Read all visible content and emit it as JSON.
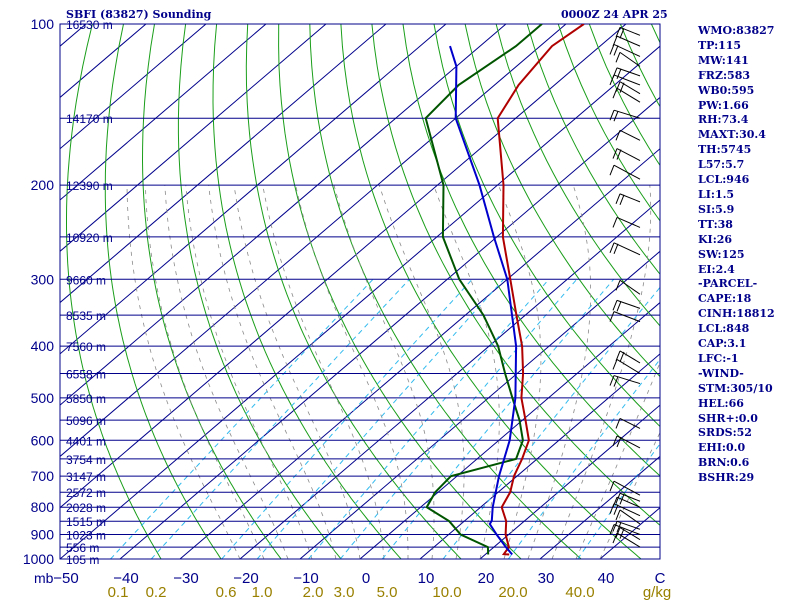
{
  "header": {
    "left": "SBFI (83827) Sounding",
    "right": "0000Z 24 APR 25"
  },
  "indices": [
    "WMO:83827",
    "TP:115",
    "MW:141",
    "FRZ:583",
    "WB0:595",
    "PW:1.66",
    "RH:73.4",
    "MAXT:30.4",
    "TH:5745",
    "L57:5.7",
    "LCL:946",
    "LI:1.5",
    "SI:5.9",
    "TT:38",
    "KI:26",
    "SW:125",
    "EI:2.4",
    "-PARCEL-",
    "CAPE:18",
    "CINH:18812",
    "LCL:848",
    "CAP:3.1",
    "LFC:-1",
    "-WIND-",
    "STM:305/10",
    "HEL:66",
    "SHR+:0.0",
    "SRDS:52",
    "EHI:0.0",
    "BRN:0.6",
    "BSHR:29"
  ],
  "colors": {
    "isobar": "#00008b",
    "isotherm": "#00008b",
    "dry_adiabat": "#1a9e1a",
    "moist_adiabat": "#8a8a8a",
    "mixing_ratio": "#33bbee",
    "temperature": "#b00000",
    "dewpoint": "#005500",
    "parcel": "#0000cc",
    "wind_barb": "#000000"
  },
  "chart_data": {
    "type": "skew-t",
    "title": "SBFI (83827) Sounding",
    "xlabel": "C",
    "ylabel": "mb",
    "mixing_ratio_unit": "g/kg",
    "pressure_range": [
      1000,
      100
    ],
    "temperature_range": [
      -50,
      50
    ],
    "pressure_ticks": [
      100,
      200,
      300,
      400,
      500,
      600,
      700,
      800,
      900,
      1000
    ],
    "temperature_ticks": [
      -50,
      -40,
      -30,
      -20,
      -10,
      0,
      10,
      20,
      30,
      40
    ],
    "mixing_ratio_ticks": [
      "0.1",
      "0.2",
      "0.6",
      "1.0",
      "2.0",
      "3.0",
      "5.0",
      "10.0",
      "20.0",
      "40.0"
    ],
    "height_labels": [
      {
        "p": 100,
        "label": "16530 m"
      },
      {
        "p": 150,
        "label": "14170 m"
      },
      {
        "p": 200,
        "label": "12390 m"
      },
      {
        "p": 250,
        "label": "10920 m"
      },
      {
        "p": 300,
        "label": "9660 m"
      },
      {
        "p": 350,
        "label": "8535 m"
      },
      {
        "p": 400,
        "label": "7560 m"
      },
      {
        "p": 450,
        "label": "6558 m"
      },
      {
        "p": 500,
        "label": "5850 m"
      },
      {
        "p": 550,
        "label": "5096 m"
      },
      {
        "p": 600,
        "label": "4401 m"
      },
      {
        "p": 650,
        "label": "3754 m"
      },
      {
        "p": 700,
        "label": "3147 m"
      },
      {
        "p": 750,
        "label": "2572 m"
      },
      {
        "p": 800,
        "label": "2028 m"
      },
      {
        "p": 850,
        "label": "1515 m"
      },
      {
        "p": 900,
        "label": "1023 m"
      },
      {
        "p": 950,
        "label": "556 m"
      },
      {
        "p": 1000,
        "label": "105 m"
      }
    ],
    "series": [
      {
        "name": "temperature",
        "points": [
          [
            981,
            24.0
          ],
          [
            979,
            23.0
          ],
          [
            950,
            22.5
          ],
          [
            900,
            19.5
          ],
          [
            850,
            17.0
          ],
          [
            800,
            13.5
          ],
          [
            750,
            12.0
          ],
          [
            700,
            9.5
          ],
          [
            650,
            7.5
          ],
          [
            600,
            5.0
          ],
          [
            550,
            0.5
          ],
          [
            500,
            -4.5
          ],
          [
            450,
            -9.0
          ],
          [
            400,
            -14.5
          ],
          [
            350,
            -21.5
          ],
          [
            300,
            -29.5
          ],
          [
            250,
            -39.0
          ],
          [
            200,
            -49.0
          ],
          [
            150,
            -63.0
          ],
          [
            130,
            -66.0
          ],
          [
            110,
            -68.0
          ],
          [
            100,
            -67.0
          ]
        ]
      },
      {
        "name": "dewpoint",
        "points": [
          [
            981,
            20.5
          ],
          [
            950,
            19.0
          ],
          [
            900,
            12.0
          ],
          [
            850,
            7.5
          ],
          [
            800,
            1.0
          ],
          [
            750,
            -0.5
          ],
          [
            700,
            -1.0
          ],
          [
            650,
            6.5
          ],
          [
            600,
            4.0
          ],
          [
            550,
            -0.5
          ],
          [
            500,
            -6.0
          ],
          [
            450,
            -12.0
          ],
          [
            400,
            -18.5
          ],
          [
            350,
            -27.0
          ],
          [
            300,
            -38.0
          ],
          [
            250,
            -49.0
          ],
          [
            200,
            -59.0
          ],
          [
            150,
            -75.0
          ],
          [
            130,
            -76.0
          ],
          [
            110,
            -74.0
          ],
          [
            100,
            -74.0
          ]
        ]
      },
      {
        "name": "parcel",
        "points": [
          [
            981,
            24.5
          ],
          [
            950,
            22.0
          ],
          [
            900,
            18.0
          ],
          [
            860,
            14.8
          ],
          [
            848,
            14.5
          ],
          [
            800,
            12.0
          ],
          [
            700,
            7.0
          ],
          [
            600,
            1.8
          ],
          [
            500,
            -5.5
          ],
          [
            400,
            -15.5
          ],
          [
            300,
            -30.0
          ],
          [
            250,
            -40.5
          ],
          [
            200,
            -53.0
          ],
          [
            150,
            -70.0
          ],
          [
            120,
            -80.0
          ],
          [
            110,
            -85.0
          ]
        ]
      }
    ],
    "wind_levels_mb": [
      105,
      110,
      115,
      120,
      125,
      130,
      135,
      140,
      150,
      165,
      180,
      195,
      215,
      240,
      270,
      320,
      340,
      360,
      430,
      450,
      470,
      570,
      620,
      760,
      780,
      800,
      830,
      860,
      880,
      900,
      920,
      950
    ]
  }
}
